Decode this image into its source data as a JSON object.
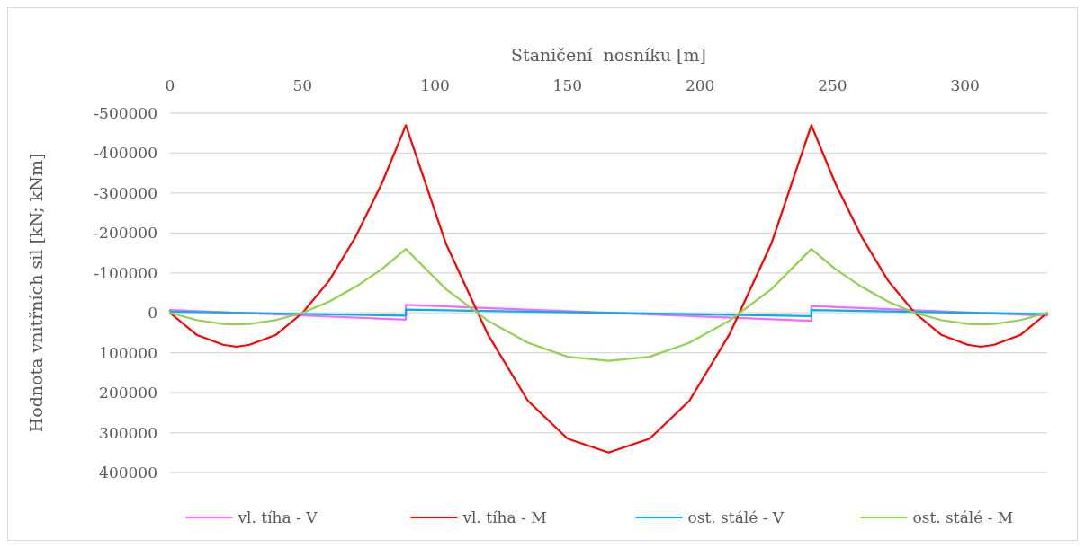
{
  "chart_data": {
    "type": "line",
    "xlabel": "Staničení  nosníku [m]",
    "ylabel": "Hodnota vnitřních sil [kN; kNm]",
    "xlim": [
      0,
      331
    ],
    "xticks": [
      0,
      50,
      100,
      150,
      200,
      250,
      300
    ],
    "ylim": [
      400000,
      -500000
    ],
    "yticks": [
      -500000,
      -400000,
      -300000,
      -200000,
      -100000,
      0,
      100000,
      200000,
      300000,
      400000
    ],
    "grid": "y",
    "legend": "bottom",
    "line_style": "solid",
    "marker": "none",
    "series": [
      {
        "name": "vl. tíha - V",
        "color": "#ff66ff",
        "x": [
          0,
          89,
          89,
          242,
          242,
          331
        ],
        "values": [
          -7000,
          17000,
          -20000,
          20000,
          -17000,
          7000
        ]
      },
      {
        "name": "vl. tíha - M",
        "color": "#ff0000",
        "x": [
          0,
          10,
          20,
          25,
          30,
          40,
          50,
          60,
          70,
          80,
          89,
          104,
          120,
          135,
          150,
          165.5,
          181,
          196,
          211,
          227,
          242,
          251,
          261,
          271,
          281,
          291,
          301,
          306,
          311,
          321,
          331
        ],
        "values": [
          0,
          55000,
          80000,
          85000,
          80000,
          55000,
          0,
          -80000,
          -190000,
          -325000,
          -470000,
          -175000,
          55000,
          220000,
          315000,
          350000,
          315000,
          220000,
          55000,
          -175000,
          -470000,
          -325000,
          -190000,
          -80000,
          0,
          55000,
          80000,
          85000,
          80000,
          55000,
          0
        ]
      },
      {
        "name": "ost. stálé - V",
        "color": "#00b0f0",
        "x": [
          0,
          89,
          89,
          242,
          242,
          331
        ],
        "values": [
          -3000,
          7000,
          -8000,
          8000,
          -7000,
          3000
        ]
      },
      {
        "name": "ost. stálé - M",
        "color": "#92d050",
        "x": [
          0,
          10,
          20,
          25,
          30,
          40,
          50,
          60,
          70,
          80,
          89,
          104,
          120,
          135,
          150,
          165.5,
          181,
          196,
          211,
          227,
          242,
          251,
          261,
          271,
          281,
          291,
          301,
          306,
          311,
          321,
          331
        ],
        "values": [
          0,
          18000,
          28000,
          29000,
          28000,
          18000,
          0,
          -28000,
          -65000,
          -110000,
          -160000,
          -60000,
          20000,
          75000,
          110000,
          120000,
          110000,
          75000,
          20000,
          -60000,
          -160000,
          -110000,
          -65000,
          -28000,
          0,
          18000,
          28000,
          29000,
          28000,
          18000,
          0
        ]
      }
    ]
  }
}
